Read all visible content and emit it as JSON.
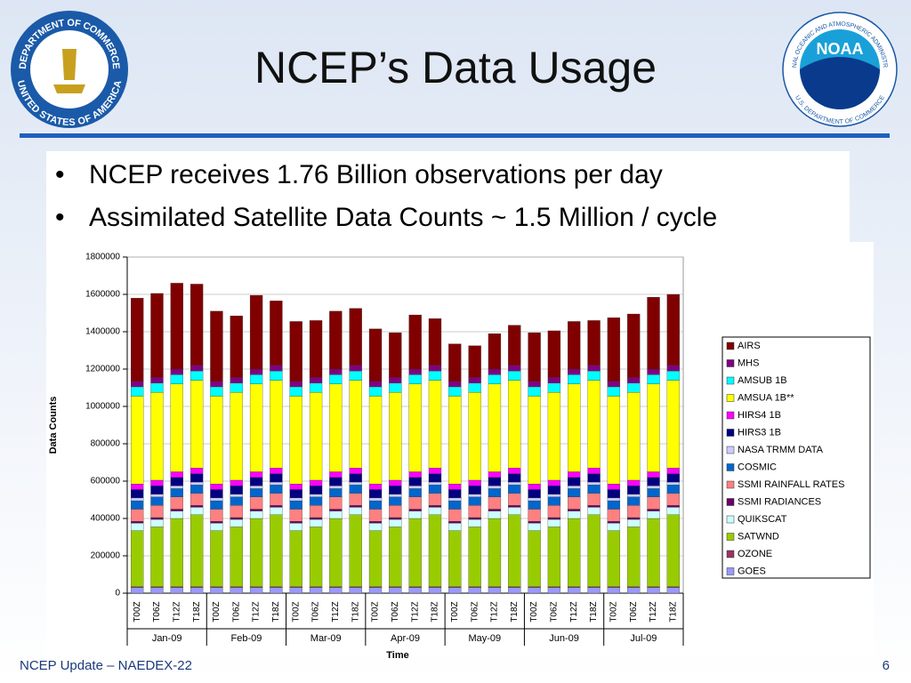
{
  "slide": {
    "title": "NCEP’s Data Usage",
    "bullets": [
      "NCEP receives 1.76 Billion observations per day",
      "Assimilated Satellite Data Counts ~ 1.5 Million / cycle"
    ],
    "footer": "NCEP Update – NAEDEX-22",
    "page_number": "6",
    "logos": {
      "left": {
        "ring_top": "DEPARTMENT OF COMMERCE",
        "ring_bottom": "UNITED STATES OF AMERICA"
      },
      "right": {
        "center": "NOAA",
        "ring_top": "NATIONAL OCEANIC AND ATMOSPHERIC ADMINISTRATION",
        "ring_bottom": "U.S. DEPARTMENT OF COMMERCE"
      }
    }
  },
  "chart_data": {
    "type": "stacked_bar",
    "x_label": "Time",
    "y_label": "Data Counts",
    "categories": [
      "T00Z",
      "T06Z",
      "T12Z",
      "T18Z",
      "T00Z",
      "T06Z",
      "T12Z",
      "T18Z",
      "T00Z",
      "T06Z",
      "T12Z",
      "T18Z",
      "T00Z",
      "T06Z",
      "T12Z",
      "T18Z",
      "T00Z",
      "T06Z",
      "T12Z",
      "T18Z",
      "T00Z",
      "T06Z",
      "T12Z",
      "T18Z",
      "T00Z",
      "T06Z",
      "T12Z",
      "T18Z"
    ],
    "groups": [
      "Jan-09",
      "Feb-09",
      "Mar-09",
      "Apr-09",
      "May-09",
      "Jun-09",
      "Jul-09"
    ],
    "ylim": [
      0,
      1800000
    ],
    "yticks": [
      0,
      200000,
      400000,
      600000,
      800000,
      1000000,
      1200000,
      1400000,
      1600000,
      1800000
    ],
    "series": [
      {
        "name": "GOES",
        "color": "#9999ff",
        "values": [
          30000,
          30000,
          30000,
          30000,
          30000,
          30000,
          30000,
          30000,
          30000,
          30000,
          30000,
          30000,
          30000,
          30000,
          30000,
          30000,
          30000,
          30000,
          30000,
          30000,
          30000,
          30000,
          30000,
          30000,
          30000,
          30000,
          30000,
          30000
        ]
      },
      {
        "name": "OZONE",
        "color": "#993366",
        "values": [
          5000,
          5000,
          5000,
          5000,
          5000,
          5000,
          5000,
          5000,
          5000,
          5000,
          5000,
          5000,
          5000,
          5000,
          5000,
          5000,
          5000,
          5000,
          5000,
          5000,
          5000,
          5000,
          5000,
          5000,
          5000,
          5000,
          5000,
          5000
        ]
      },
      {
        "name": "SATWND",
        "color": "#99cc00",
        "values": [
          300000,
          320000,
          365000,
          385000,
          300000,
          320000,
          365000,
          385000,
          300000,
          320000,
          365000,
          385000,
          300000,
          320000,
          365000,
          385000,
          300000,
          320000,
          365000,
          385000,
          300000,
          320000,
          365000,
          385000,
          300000,
          320000,
          365000,
          385000
        ]
      },
      {
        "name": "QUIKSCAT",
        "color": "#ccffff",
        "values": [
          40000,
          40000,
          40000,
          40000,
          40000,
          40000,
          40000,
          40000,
          40000,
          40000,
          40000,
          40000,
          40000,
          40000,
          40000,
          40000,
          40000,
          40000,
          40000,
          40000,
          40000,
          40000,
          40000,
          40000,
          40000,
          40000,
          40000,
          40000
        ]
      },
      {
        "name": "SSMI RADIANCES",
        "color": "#660066",
        "values": [
          10000,
          10000,
          10000,
          10000,
          10000,
          10000,
          10000,
          10000,
          10000,
          10000,
          10000,
          10000,
          10000,
          10000,
          10000,
          10000,
          10000,
          10000,
          10000,
          10000,
          10000,
          10000,
          10000,
          10000,
          10000,
          10000,
          10000,
          10000
        ]
      },
      {
        "name": "SSMI RAINFALL RATES",
        "color": "#ff8080",
        "values": [
          65000,
          65000,
          65000,
          65000,
          65000,
          65000,
          65000,
          65000,
          65000,
          65000,
          65000,
          65000,
          65000,
          65000,
          65000,
          65000,
          65000,
          65000,
          65000,
          65000,
          65000,
          65000,
          65000,
          65000,
          65000,
          65000,
          65000,
          65000
        ]
      },
      {
        "name": "COSMIC",
        "color": "#0066cc",
        "values": [
          45000,
          45000,
          45000,
          45000,
          45000,
          45000,
          45000,
          45000,
          45000,
          45000,
          45000,
          45000,
          45000,
          45000,
          45000,
          45000,
          45000,
          45000,
          45000,
          45000,
          45000,
          45000,
          45000,
          45000,
          45000,
          45000,
          45000,
          45000
        ]
      },
      {
        "name": "NASA TRMM DATA",
        "color": "#ccccff",
        "values": [
          15000,
          15000,
          15000,
          15000,
          15000,
          15000,
          15000,
          15000,
          15000,
          15000,
          15000,
          15000,
          15000,
          15000,
          15000,
          15000,
          15000,
          15000,
          15000,
          15000,
          15000,
          15000,
          15000,
          15000,
          15000,
          15000,
          15000,
          15000
        ]
      },
      {
        "name": "HIRS3 1B",
        "color": "#000080",
        "values": [
          45000,
          45000,
          45000,
          45000,
          45000,
          45000,
          45000,
          45000,
          45000,
          45000,
          45000,
          45000,
          45000,
          45000,
          45000,
          45000,
          45000,
          45000,
          45000,
          45000,
          45000,
          45000,
          45000,
          45000,
          45000,
          45000,
          45000,
          45000
        ]
      },
      {
        "name": "HIRS4 1B",
        "color": "#ff00ff",
        "values": [
          30000,
          30000,
          30000,
          30000,
          30000,
          30000,
          30000,
          30000,
          30000,
          30000,
          30000,
          30000,
          30000,
          30000,
          30000,
          30000,
          30000,
          30000,
          30000,
          30000,
          30000,
          30000,
          30000,
          30000,
          30000,
          30000,
          30000,
          30000
        ]
      },
      {
        "name": "AMSUA 1B**",
        "color": "#ffff00",
        "values": [
          470000,
          470000,
          470000,
          470000,
          470000,
          470000,
          470000,
          470000,
          470000,
          470000,
          470000,
          470000,
          470000,
          470000,
          470000,
          470000,
          470000,
          470000,
          470000,
          470000,
          470000,
          470000,
          470000,
          470000,
          470000,
          470000,
          470000,
          470000
        ]
      },
      {
        "name": "AMSUB 1B",
        "color": "#00ffff",
        "values": [
          50000,
          50000,
          50000,
          50000,
          50000,
          50000,
          50000,
          50000,
          50000,
          50000,
          50000,
          50000,
          50000,
          50000,
          50000,
          50000,
          50000,
          50000,
          50000,
          50000,
          50000,
          50000,
          50000,
          50000,
          50000,
          50000,
          50000,
          50000
        ]
      },
      {
        "name": "MHS",
        "color": "#800080",
        "values": [
          30000,
          30000,
          30000,
          30000,
          30000,
          30000,
          30000,
          30000,
          30000,
          30000,
          30000,
          30000,
          30000,
          30000,
          30000,
          30000,
          30000,
          30000,
          30000,
          30000,
          30000,
          30000,
          30000,
          30000,
          30000,
          30000,
          30000,
          30000
        ]
      },
      {
        "name": "AIRS",
        "color": "#800000",
        "values": [
          445000,
          450000,
          460000,
          435000,
          375000,
          330000,
          395000,
          345000,
          320000,
          305000,
          310000,
          305000,
          280000,
          240000,
          290000,
          250000,
          200000,
          170000,
          190000,
          215000,
          260000,
          250000,
          255000,
          240000,
          340000,
          340000,
          385000,
          380000
        ]
      }
    ]
  }
}
